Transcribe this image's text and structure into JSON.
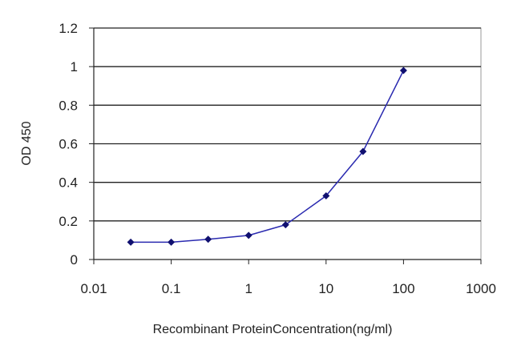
{
  "chart_data": {
    "type": "line",
    "title": "",
    "xlabel": "Recombinant ProteinConcentration(ng/ml)",
    "ylabel": "OD 450",
    "x_scale": "log",
    "xlim": [
      0.01,
      1000
    ],
    "ylim": [
      0,
      1.2
    ],
    "x_ticks": [
      0.01,
      0.1,
      1,
      10,
      100,
      1000
    ],
    "x_tick_labels": [
      "0.01",
      "0.1",
      "1",
      "10",
      "100",
      "1000"
    ],
    "y_ticks": [
      0,
      0.2,
      0.4,
      0.6,
      0.8,
      1,
      1.2
    ],
    "y_tick_labels": [
      "0",
      "0.2",
      "0.4",
      "0.6",
      "0.8",
      "1",
      "1.2"
    ],
    "grid": "horizontal",
    "legend": "none",
    "series": [
      {
        "x": [
          0.03,
          0.1,
          0.3,
          1,
          3,
          10,
          30,
          100
        ],
        "y": [
          0.09,
          0.09,
          0.105,
          0.125,
          0.18,
          0.33,
          0.56,
          0.98
        ],
        "color": "#2a2ab0",
        "marker_color": "#101070",
        "marker": "diamond"
      }
    ]
  }
}
